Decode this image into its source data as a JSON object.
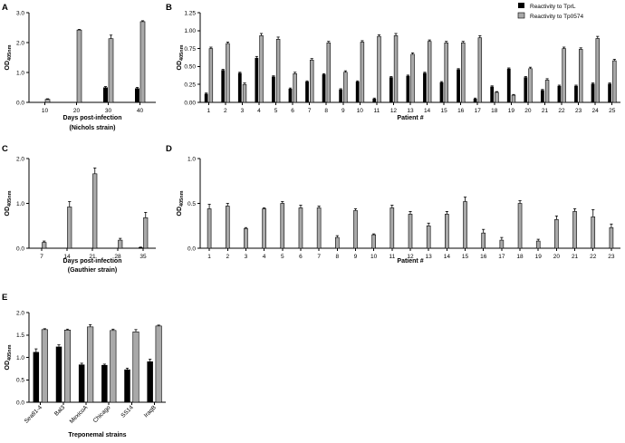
{
  "colors": {
    "black_series": "#000000",
    "grey_series": "#a9a9a9",
    "axis": "#000000",
    "error": "#000000"
  },
  "legend": {
    "tprl": "Reactivity to TprL",
    "tp0574": "Reactivity to Tp0574"
  },
  "chart_data": [
    {
      "panel": "A",
      "type": "bar",
      "categories": [
        "10",
        "20",
        "30",
        "40"
      ],
      "series": [
        {
          "name": "Reactivity to TprL",
          "color": "#000000",
          "values": [
            null,
            null,
            0.5,
            0.47
          ],
          "err": [
            0,
            0,
            0.03,
            0.03
          ]
        },
        {
          "name": "Reactivity to Tp0574",
          "color": "#a9a9a9",
          "values": [
            0.1,
            2.42,
            2.13,
            2.7
          ],
          "err": [
            0.02,
            0.02,
            0.12,
            0.03
          ]
        }
      ],
      "ylim": [
        0,
        3
      ],
      "yticks": [
        "0.0",
        "1.0",
        "2.0",
        "3.0"
      ],
      "ylabel": "OD405nm",
      "xlabel": "Days post-infection",
      "xlabel2": "(Nichols strain)"
    },
    {
      "panel": "B",
      "type": "bar",
      "categories": [
        "1",
        "2",
        "3",
        "4",
        "5",
        "6",
        "7",
        "8",
        "9",
        "10",
        "11",
        "12",
        "13",
        "14",
        "15",
        "16",
        "17",
        "18",
        "19",
        "20",
        "21",
        "22",
        "23",
        "24",
        "25"
      ],
      "series": [
        {
          "name": "Reactivity to TprL",
          "color": "#000000",
          "values": [
            0.12,
            0.45,
            0.41,
            0.62,
            0.36,
            0.19,
            0.29,
            0.39,
            0.18,
            0.29,
            0.05,
            0.35,
            0.37,
            0.41,
            0.28,
            0.46,
            0.05,
            0.22,
            0.47,
            0.35,
            0.17,
            0.23,
            0.23,
            0.26,
            0.26
          ],
          "err": [
            0.01,
            0.01,
            0.01,
            0.02,
            0.01,
            0.01,
            0.01,
            0.01,
            0.01,
            0.01,
            0.01,
            0.01,
            0.01,
            0.01,
            0.01,
            0.01,
            0.01,
            0.01,
            0.01,
            0.01,
            0.01,
            0.01,
            0.01,
            0.01,
            0.01
          ]
        },
        {
          "name": "Reactivity to Tp0574",
          "color": "#a9a9a9",
          "values": [
            0.75,
            0.82,
            0.25,
            0.93,
            0.88,
            0.4,
            0.59,
            0.83,
            0.42,
            0.84,
            0.92,
            0.93,
            0.67,
            0.85,
            0.83,
            0.83,
            0.9,
            0.14,
            0.1,
            0.47,
            0.31,
            0.75,
            0.74,
            0.89,
            0.58
          ],
          "err": [
            0.02,
            0.02,
            0.02,
            0.03,
            0.03,
            0.02,
            0.02,
            0.02,
            0.02,
            0.02,
            0.02,
            0.03,
            0.02,
            0.02,
            0.02,
            0.02,
            0.03,
            0.01,
            0.01,
            0.02,
            0.02,
            0.02,
            0.02,
            0.03,
            0.02
          ]
        }
      ],
      "ylim": [
        0,
        1.25
      ],
      "yticks": [
        "0.00",
        "0.25",
        "0.50",
        "0.75",
        "1.00",
        "1.25"
      ],
      "ylabel": "OD405nm",
      "xlabel": "Patient #"
    },
    {
      "panel": "C",
      "type": "bar",
      "categories": [
        "7",
        "14",
        "21",
        "28",
        "35"
      ],
      "series": [
        {
          "name": "Reactivity to TprL",
          "color": "#000000",
          "values": [
            null,
            null,
            null,
            null,
            0.02
          ],
          "err": [
            0,
            0,
            0,
            0,
            0.005
          ]
        },
        {
          "name": "Reactivity to Tp0574",
          "color": "#a9a9a9",
          "values": [
            0.13,
            0.92,
            1.66,
            0.18,
            0.68
          ],
          "err": [
            0.03,
            0.12,
            0.13,
            0.04,
            0.12
          ]
        }
      ],
      "ylim": [
        0,
        2
      ],
      "yticks": [
        "0.0",
        "1.0",
        "2.0"
      ],
      "ylabel": "OD405nm",
      "xlabel": "Days post-infection",
      "xlabel2": "(Gauthier strain)"
    },
    {
      "panel": "D",
      "type": "bar",
      "categories": [
        "1",
        "2",
        "3",
        "4",
        "5",
        "6",
        "7",
        "8",
        "9",
        "10",
        "11",
        "12",
        "13",
        "14",
        "15",
        "16",
        "17",
        "18",
        "19",
        "20",
        "21",
        "22",
        "23"
      ],
      "series": [
        {
          "name": "Reactivity to Tp0574",
          "color": "#a9a9a9",
          "values": [
            0.44,
            0.47,
            0.22,
            0.44,
            0.5,
            0.45,
            0.45,
            0.12,
            0.42,
            0.15,
            0.45,
            0.38,
            0.25,
            0.38,
            0.52,
            0.17,
            0.09,
            0.5,
            0.08,
            0.32,
            0.41,
            0.35,
            0.23
          ],
          "err": [
            0.05,
            0.03,
            0.01,
            0.01,
            0.02,
            0.03,
            0.02,
            0.02,
            0.02,
            0.01,
            0.03,
            0.03,
            0.03,
            0.03,
            0.05,
            0.04,
            0.03,
            0.03,
            0.02,
            0.04,
            0.03,
            0.08,
            0.04
          ]
        }
      ],
      "ylim": [
        0,
        1
      ],
      "yticks": [
        "0.0",
        "0.5",
        "1.0"
      ],
      "ylabel": "OD405nm",
      "xlabel": "Patient #"
    },
    {
      "panel": "E",
      "type": "bar",
      "categories": [
        "Sea81-4",
        "Bal3",
        "MexicoA",
        "Chicago",
        "SS14",
        "IraqB"
      ],
      "series": [
        {
          "name": "Reactivity to TprL",
          "color": "#000000",
          "values": [
            1.12,
            1.24,
            0.84,
            0.83,
            0.73,
            0.91
          ],
          "err": [
            0.07,
            0.04,
            0.03,
            0.02,
            0.03,
            0.05
          ]
        },
        {
          "name": "Reactivity to Tp0574",
          "color": "#a9a9a9",
          "values": [
            1.62,
            1.61,
            1.68,
            1.6,
            1.57,
            1.7
          ],
          "err": [
            0.02,
            0.02,
            0.05,
            0.03,
            0.05,
            0.02
          ]
        }
      ],
      "ylim": [
        0,
        2
      ],
      "yticks": [
        "0.0",
        "0.5",
        "1.0",
        "1.5",
        "2.0"
      ],
      "ylabel": "OD405nm",
      "xlabel": "Treponemal strains"
    }
  ]
}
